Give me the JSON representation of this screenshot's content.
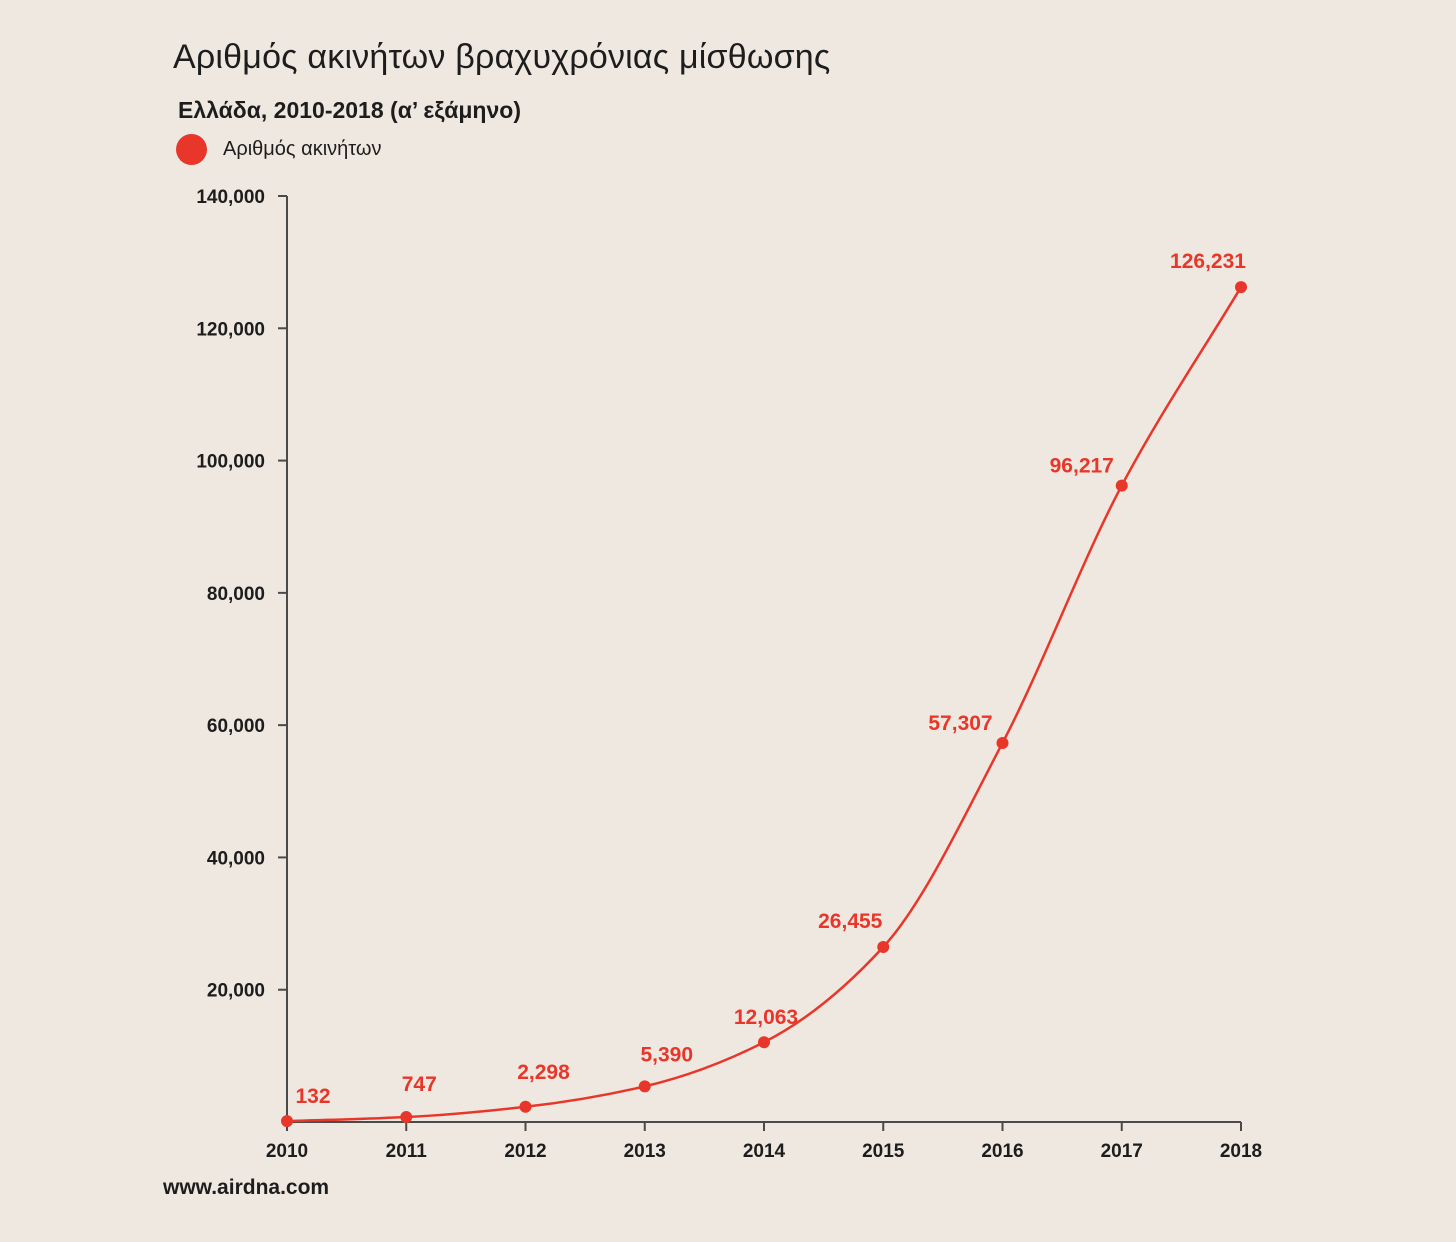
{
  "title": "Αριθμός ακινήτων βραχυχρόνιας μίσθωσης",
  "subtitle": "Ελλάδα, 2010-2018 (α’ εξάμηνο)",
  "legend_label": "Αριθμός ακινήτων",
  "source": "www.airdna.com",
  "colors": {
    "series": "#e8372a",
    "axis": "#4a4a4a",
    "background": "#efe8e0"
  },
  "chart_data": {
    "type": "line",
    "title": "Αριθμός ακινήτων βραχυχρόνιας μίσθωσης",
    "subtitle": "Ελλάδα, 2010-2018 (α’ εξάμηνο)",
    "xlabel": "",
    "ylabel": "",
    "categories": [
      "2010",
      "2011",
      "2012",
      "2013",
      "2014",
      "2015",
      "2016",
      "2017",
      "2018"
    ],
    "series": [
      {
        "name": "Αριθμός ακινήτων",
        "values": [
          132,
          747,
          2298,
          5390,
          12063,
          26455,
          57307,
          96217,
          126231
        ],
        "labels": [
          "132",
          "747",
          "2,298",
          "5,390",
          "12,063",
          "26,455",
          "57,307",
          "96,217",
          "126,231"
        ]
      }
    ],
    "ylim": [
      0,
      140000
    ],
    "yticks": [
      20000,
      40000,
      60000,
      80000,
      100000,
      120000,
      140000
    ],
    "ytick_labels": [
      "20,000",
      "40,000",
      "60,000",
      "80,000",
      "100,000",
      "120,000",
      "140,000"
    ],
    "grid": false,
    "legend_position": "top-left",
    "smooth": true
  }
}
